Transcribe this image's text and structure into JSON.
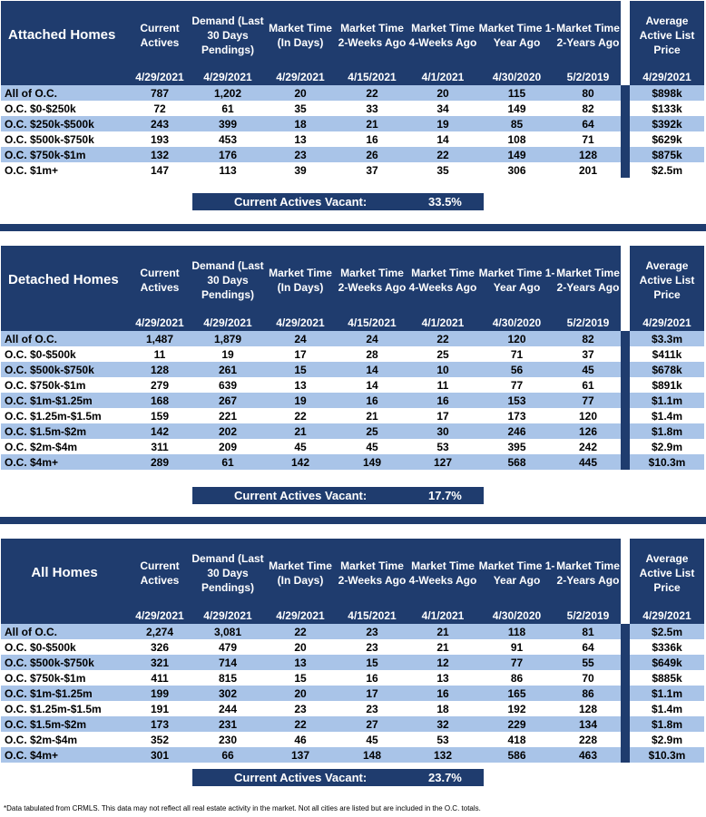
{
  "columns": {
    "current_actives": "Current Actives",
    "demand": "Demand (Last 30 Days Pendings)",
    "market_time": "Market Time (In Days)",
    "mt_2wk": "Market Time 2-Weeks Ago",
    "mt_4wk": "Market Time 4-Weeks Ago",
    "mt_1yr": "Market Time 1-Year Ago",
    "mt_2yr": "Market Time 2-Years Ago",
    "avg_price": "Average Active List Price"
  },
  "dates": [
    "4/29/2021",
    "4/29/2021",
    "4/29/2021",
    "4/15/2021",
    "4/1/2021",
    "4/30/2020",
    "5/2/2019",
    "4/29/2021"
  ],
  "vacant_label": "Current Actives Vacant:",
  "sections": {
    "attached": {
      "title": "Attached Homes",
      "vacant": "33.5%",
      "rows": [
        [
          "All of O.C.",
          "787",
          "1,202",
          "20",
          "22",
          "20",
          "115",
          "80",
          "$898k"
        ],
        [
          "O.C. $0-$250k",
          "72",
          "61",
          "35",
          "33",
          "34",
          "149",
          "82",
          "$133k"
        ],
        [
          "O.C. $250k-$500k",
          "243",
          "399",
          "18",
          "21",
          "19",
          "85",
          "64",
          "$392k"
        ],
        [
          "O.C. $500k-$750k",
          "193",
          "453",
          "13",
          "16",
          "14",
          "108",
          "71",
          "$629k"
        ],
        [
          "O.C. $750k-$1m",
          "132",
          "176",
          "23",
          "26",
          "22",
          "149",
          "128",
          "$875k"
        ],
        [
          "O.C. $1m+",
          "147",
          "113",
          "39",
          "37",
          "35",
          "306",
          "201",
          "$2.5m"
        ]
      ]
    },
    "detached": {
      "title": "Detached Homes",
      "vacant": "17.7%",
      "rows": [
        [
          "All of O.C.",
          "1,487",
          "1,879",
          "24",
          "24",
          "22",
          "120",
          "82",
          "$3.3m"
        ],
        [
          "O.C. $0-$500k",
          "11",
          "19",
          "17",
          "28",
          "25",
          "71",
          "37",
          "$411k"
        ],
        [
          "O.C. $500k-$750k",
          "128",
          "261",
          "15",
          "14",
          "10",
          "56",
          "45",
          "$678k"
        ],
        [
          "O.C. $750k-$1m",
          "279",
          "639",
          "13",
          "14",
          "11",
          "77",
          "61",
          "$891k"
        ],
        [
          "O.C. $1m-$1.25m",
          "168",
          "267",
          "19",
          "16",
          "16",
          "153",
          "77",
          "$1.1m"
        ],
        [
          "O.C. $1.25m-$1.5m",
          "159",
          "221",
          "22",
          "21",
          "17",
          "173",
          "120",
          "$1.4m"
        ],
        [
          "O.C. $1.5m-$2m",
          "142",
          "202",
          "21",
          "25",
          "30",
          "246",
          "126",
          "$1.8m"
        ],
        [
          "O.C. $2m-$4m",
          "311",
          "209",
          "45",
          "45",
          "53",
          "395",
          "242",
          "$2.9m"
        ],
        [
          "O.C. $4m+",
          "289",
          "61",
          "142",
          "149",
          "127",
          "568",
          "445",
          "$10.3m"
        ]
      ]
    },
    "all": {
      "title": "All Homes",
      "vacant": "23.7%",
      "rows": [
        [
          "All of O.C.",
          "2,274",
          "3,081",
          "22",
          "23",
          "21",
          "118",
          "81",
          "$2.5m"
        ],
        [
          "O.C. $0-$500k",
          "326",
          "479",
          "20",
          "23",
          "21",
          "91",
          "64",
          "$336k"
        ],
        [
          "O.C. $500k-$750k",
          "321",
          "714",
          "13",
          "15",
          "12",
          "77",
          "55",
          "$649k"
        ],
        [
          "O.C. $750k-$1m",
          "411",
          "815",
          "15",
          "16",
          "13",
          "86",
          "70",
          "$885k"
        ],
        [
          "O.C. $1m-$1.25m",
          "199",
          "302",
          "20",
          "17",
          "16",
          "165",
          "86",
          "$1.1m"
        ],
        [
          "O.C. $1.25m-$1.5m",
          "191",
          "244",
          "23",
          "23",
          "18",
          "192",
          "128",
          "$1.4m"
        ],
        [
          "O.C. $1.5m-$2m",
          "173",
          "231",
          "22",
          "27",
          "32",
          "229",
          "134",
          "$1.8m"
        ],
        [
          "O.C. $2m-$4m",
          "352",
          "230",
          "46",
          "45",
          "53",
          "418",
          "228",
          "$2.9m"
        ],
        [
          "O.C. $4m+",
          "301",
          "66",
          "137",
          "148",
          "132",
          "586",
          "463",
          "$10.3m"
        ]
      ]
    }
  },
  "footnote": "*Data tabulated from CRMLS. This data may not reflect all real estate activity in the market. Not all cities are listed but are included in the O.C. totals."
}
